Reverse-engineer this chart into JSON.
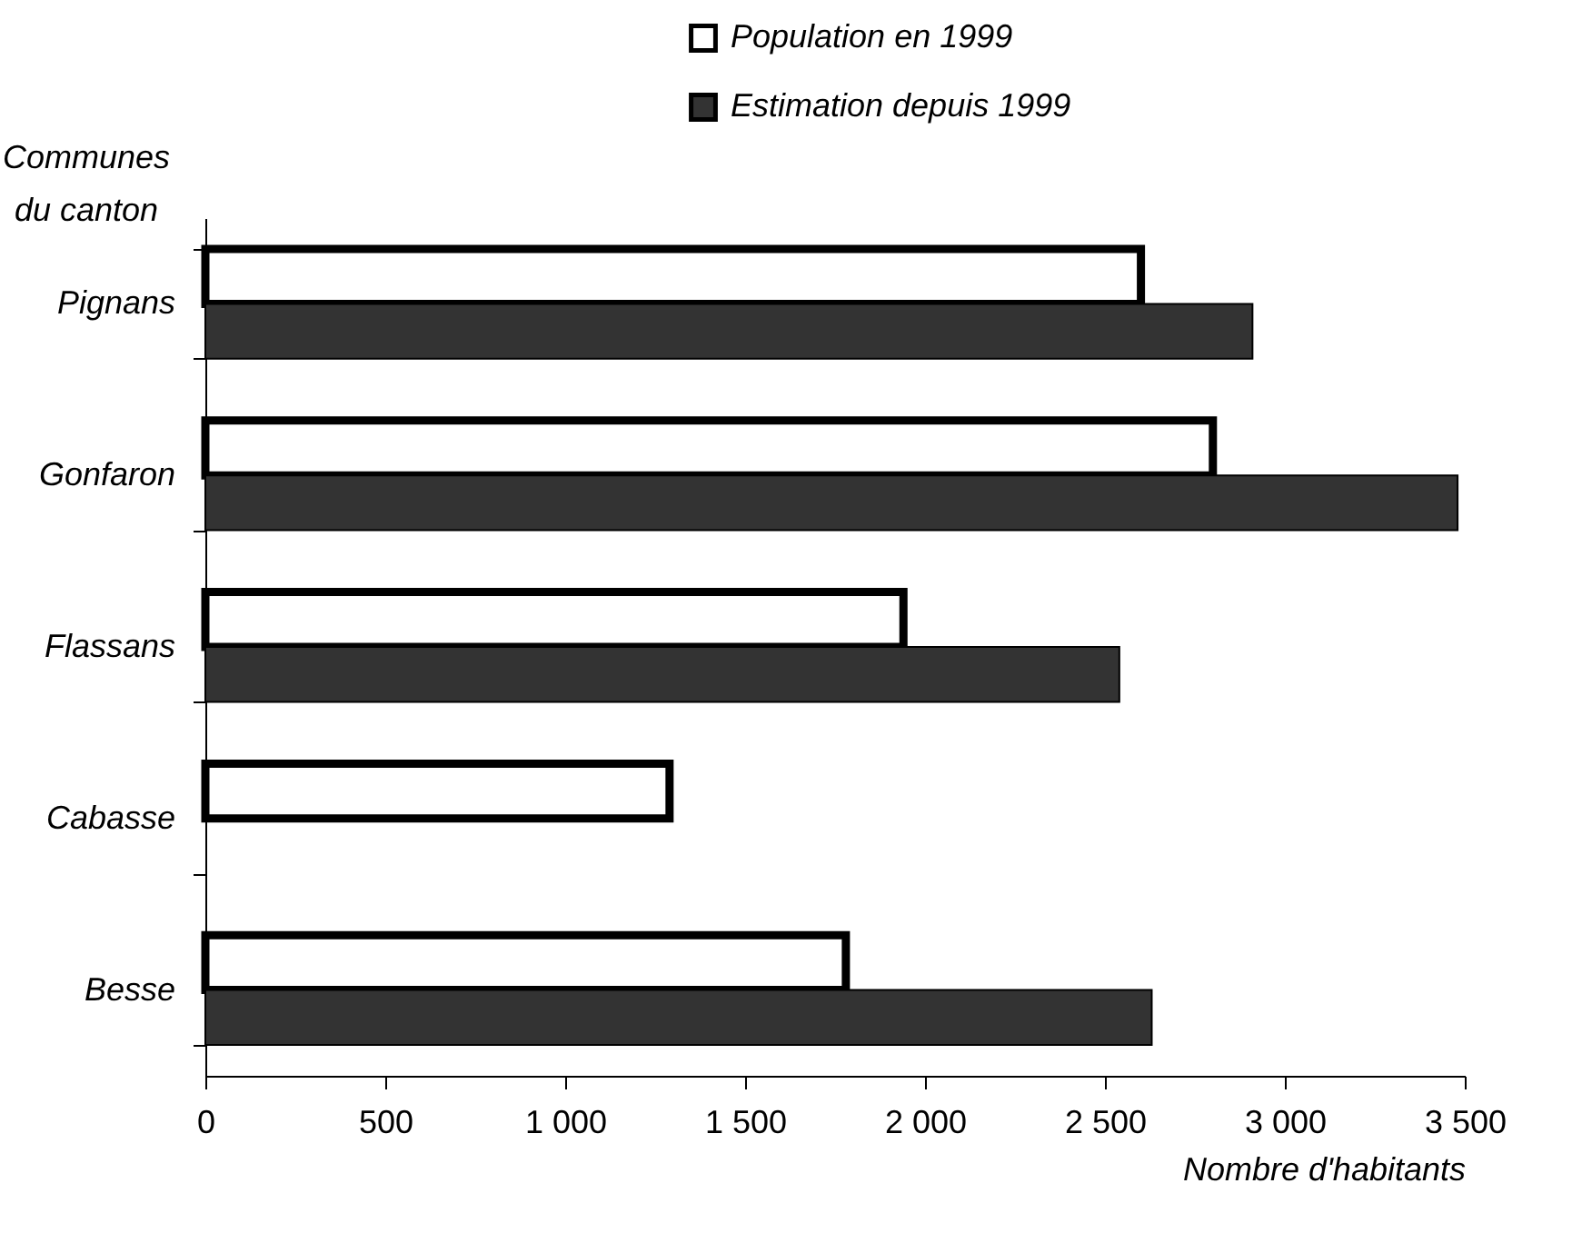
{
  "chart_data": {
    "type": "bar",
    "orientation": "horizontal",
    "ylabel": "Communes\ndu canton",
    "xlabel": "Nombre d'habitants",
    "categories": [
      "Pignans",
      "Gonfaron",
      "Flassans",
      "Cabasse",
      "Besse"
    ],
    "series": [
      {
        "name": "Population en 1999",
        "color": "#ffffff",
        "values": [
          2600,
          2800,
          1940,
          1290,
          1780
        ]
      },
      {
        "name": "Estimation depuis 1999",
        "color": "#333333",
        "values": [
          2910,
          3480,
          2540,
          null,
          2630
        ]
      }
    ],
    "xlim": [
      0,
      3500
    ],
    "xticks": [
      0,
      500,
      {
        "value": 1000,
        "label": "1 000"
      },
      {
        "value": 1500,
        "label": "1 500"
      },
      {
        "value": 2000,
        "label": "2 000"
      },
      {
        "value": 2500,
        "label": "2 500"
      },
      {
        "value": 3000,
        "label": "3 000"
      },
      {
        "value": 3500,
        "label": "3 500"
      }
    ],
    "grid": false,
    "legend": "top"
  }
}
